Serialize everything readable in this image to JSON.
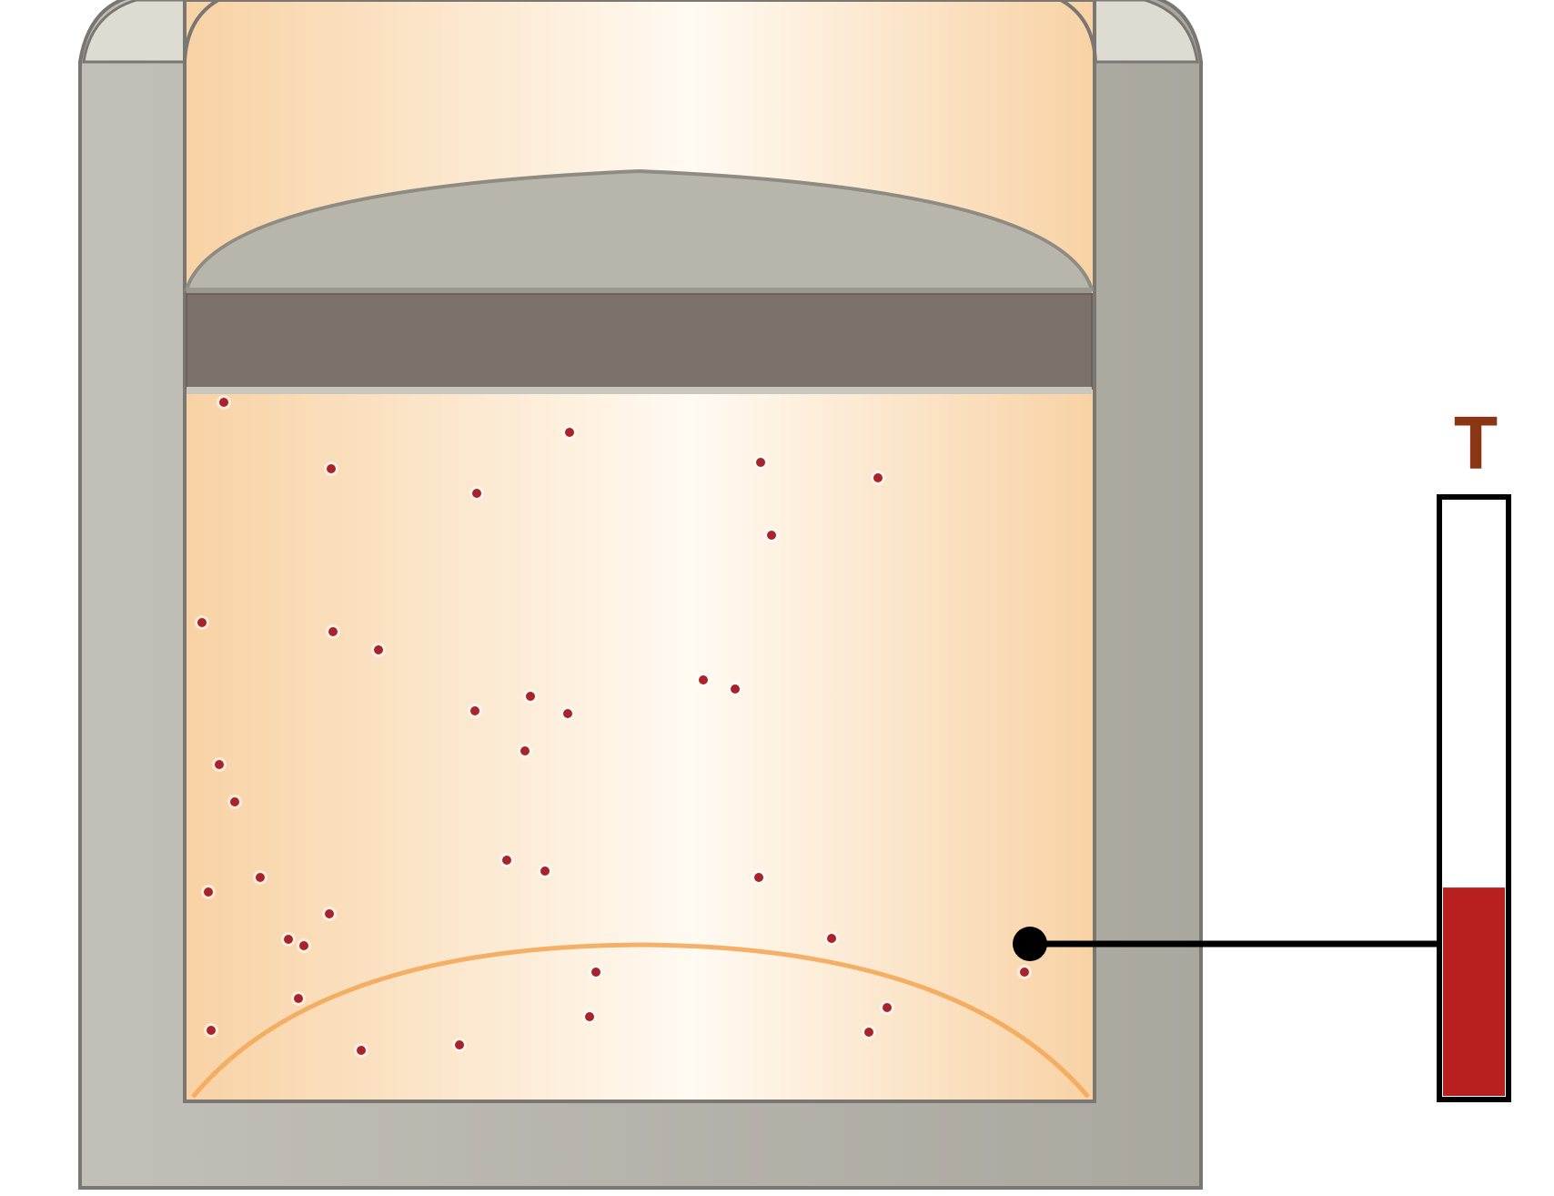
{
  "thermometer": {
    "label": "T",
    "level_fraction": 0.35
  },
  "colors": {
    "gas": "#f8d2a4",
    "gas_highlight": "#fffaf2",
    "cylinder_wall": "#b5b2ab",
    "cylinder_outline": "#7a7773",
    "piston_top": "#b8b5aa",
    "piston_body": "#7b716a",
    "particle": "#a8242c",
    "thermometer_fill": "#b8201f",
    "label": "#8a3514",
    "floor_arc": "#f3a95a"
  },
  "particle_count": 42
}
